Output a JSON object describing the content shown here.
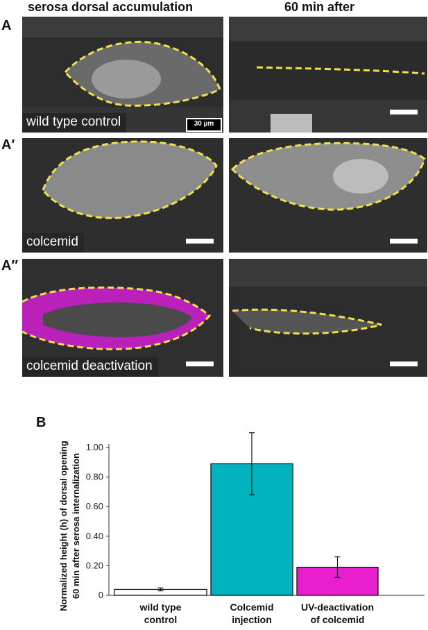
{
  "columns": [
    "serosa dorsal accumulation",
    "60 min after"
  ],
  "rows": [
    {
      "letter": "A",
      "label": "wild type control",
      "scale_label": "30 µm"
    },
    {
      "letter": "A′",
      "label": "colcemid"
    },
    {
      "letter": "A″",
      "label": "colcemid deactivation"
    }
  ],
  "colors": {
    "outline": "#f2e04a",
    "magenta": "#d21fd2",
    "teal": "#00b3bf",
    "white_bar": "#ffffff"
  },
  "panel_b": {
    "letter": "B"
  },
  "chart_data": {
    "type": "bar",
    "categories": [
      [
        "wild type",
        "control"
      ],
      [
        "Colcemid",
        "injection"
      ],
      [
        "UV-deactivation",
        "of colcemid"
      ]
    ],
    "values": [
      0.04,
      0.89,
      0.19
    ],
    "error": [
      0.01,
      0.21,
      0.07
    ],
    "colors": [
      "#ffffff",
      "#00b3bf",
      "#e81ecf"
    ],
    "ylabel_lines": [
      "Normalized height (h) of dorsal opening",
      "60 min after serosa internalization"
    ],
    "ylim": [
      0,
      1.0
    ],
    "yticks": [
      "0",
      "0.20",
      "0.40",
      "0.60",
      "0.80",
      "1.00"
    ],
    "ytick_values": [
      0,
      0.2,
      0.4,
      0.6,
      0.8,
      1.0
    ]
  }
}
